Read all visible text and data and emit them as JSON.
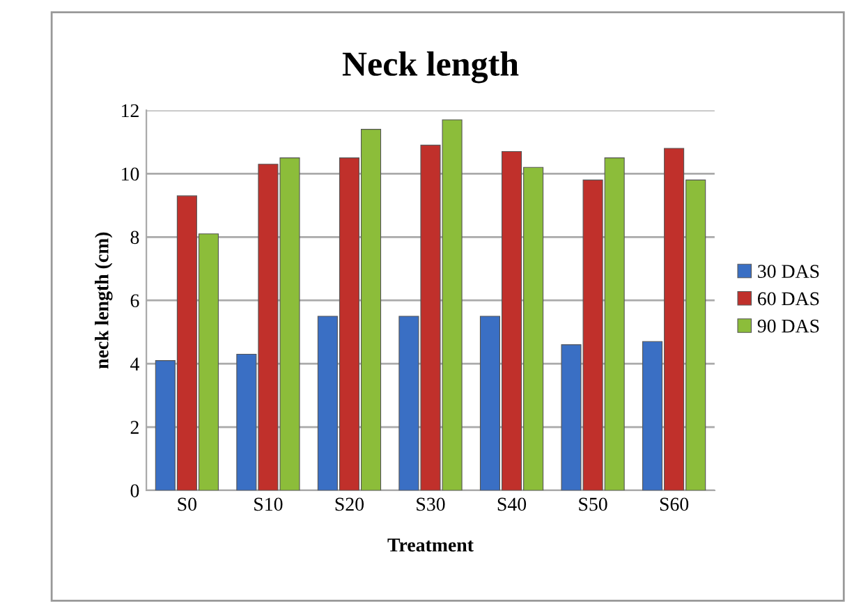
{
  "chart_data": {
    "type": "bar",
    "title": "Neck length",
    "xlabel": "Treatment",
    "ylabel": "neck length (cm)",
    "categories": [
      "S0",
      "S10",
      "S20",
      "S30",
      "S40",
      "S50",
      "S60"
    ],
    "series": [
      {
        "name": "30 DAS",
        "color": "#3a6fc4",
        "values": [
          4.1,
          4.3,
          5.5,
          5.5,
          5.5,
          4.6,
          4.7
        ]
      },
      {
        "name": "60 DAS",
        "color": "#c0302b",
        "values": [
          9.3,
          10.3,
          10.5,
          10.9,
          10.7,
          9.8,
          10.8
        ]
      },
      {
        "name": "90 DAS",
        "color": "#8cbd3a",
        "values": [
          8.1,
          10.5,
          11.4,
          11.7,
          10.2,
          10.5,
          9.8
        ]
      }
    ],
    "ylim": [
      0,
      12
    ],
    "yticks": [
      0,
      2,
      4,
      6,
      8,
      10,
      12
    ],
    "grid": "y",
    "legend": "right"
  }
}
